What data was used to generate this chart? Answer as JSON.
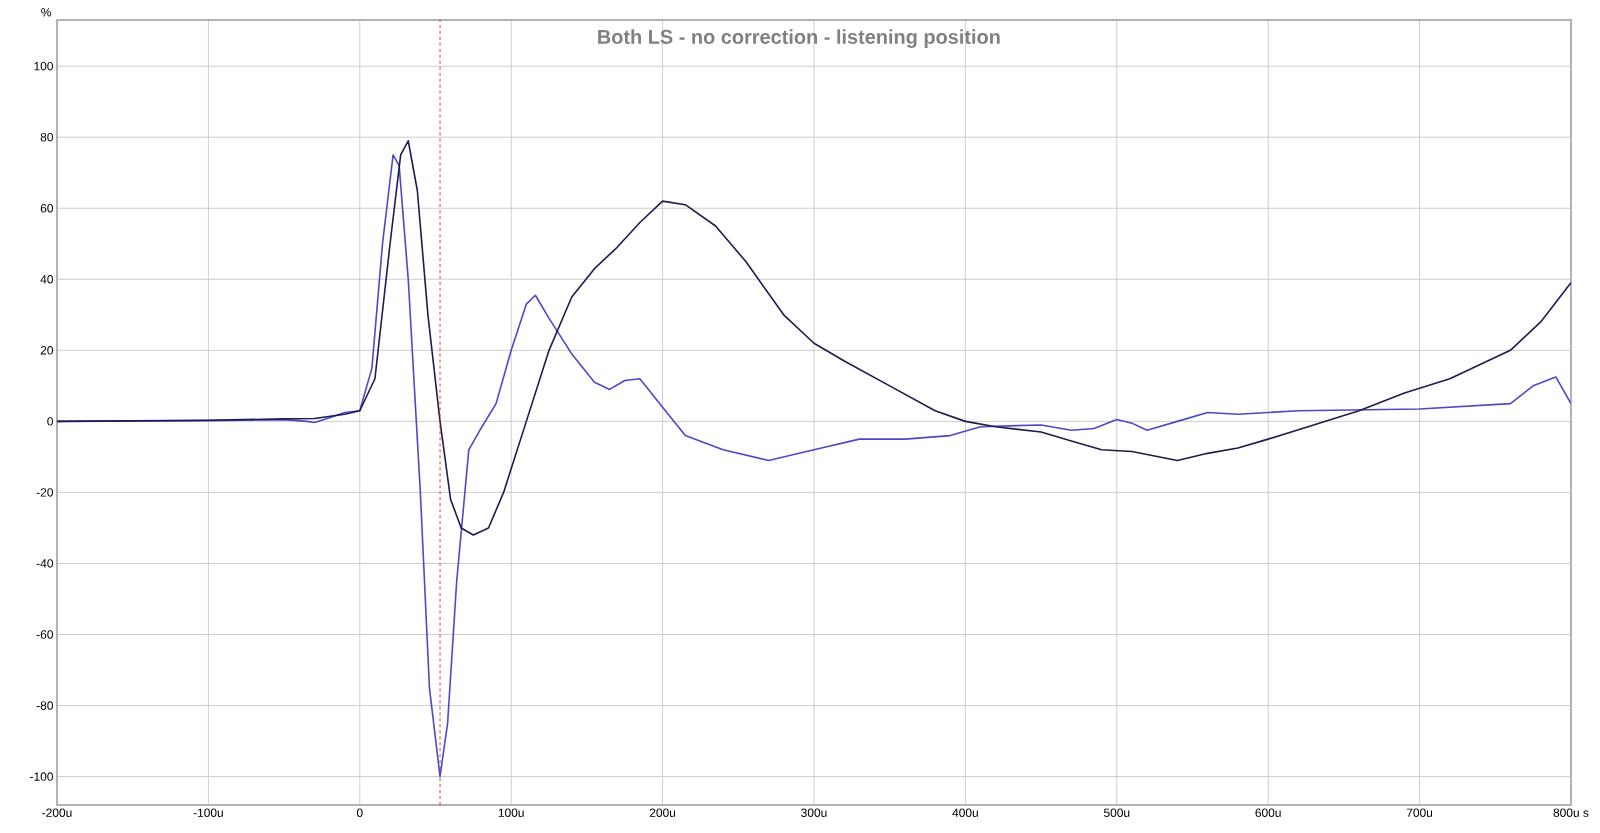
{
  "chart_data": {
    "type": "line",
    "title": "Both LS - no correction - listening position",
    "ylabel": "%",
    "xlim": [
      -200,
      800
    ],
    "ylim": [
      -108,
      113
    ],
    "xticks": [
      {
        "value": -200,
        "label": "-200u"
      },
      {
        "value": -100,
        "label": "-100u"
      },
      0,
      {
        "value": 100,
        "label": "100u"
      },
      {
        "value": 200,
        "label": "200u"
      },
      {
        "value": 300,
        "label": "300u"
      },
      {
        "value": 400,
        "label": "400u"
      },
      {
        "value": 500,
        "label": "500u"
      },
      {
        "value": 600,
        "label": "600u"
      },
      {
        "value": 700,
        "label": "700u"
      },
      {
        "value": 800,
        "label": "800u s"
      }
    ],
    "yticks": [
      -100,
      -80,
      -60,
      -40,
      -20,
      0,
      20,
      40,
      60,
      80,
      100
    ],
    "grid": true,
    "line_style": "solid",
    "ref_lines": [
      {
        "axis": "x",
        "value": 53,
        "color": "#dd2222",
        "line_style": "dashed"
      }
    ],
    "series": [
      {
        "color": "#4a4ac8",
        "x": [
          -200,
          -100,
          -50,
          -35,
          -30,
          -20,
          -10,
          0,
          8,
          15,
          22,
          26,
          32,
          40,
          46,
          53,
          58,
          64,
          72,
          80,
          90,
          100,
          110,
          116,
          125,
          140,
          155,
          165,
          175,
          185,
          200,
          215,
          240,
          270,
          300,
          330,
          360,
          390,
          410,
          450,
          470,
          485,
          500,
          510,
          520,
          540,
          560,
          580,
          600,
          620,
          700,
          760,
          775,
          790,
          800
        ],
        "values": [
          0,
          0.2,
          0.5,
          0,
          -0.3,
          1,
          2.5,
          3,
          15,
          50,
          75,
          72,
          40,
          -20,
          -75,
          -100,
          -85,
          -45,
          -8,
          -2,
          5,
          20,
          33,
          35.5,
          29,
          19,
          11,
          9,
          11.5,
          12,
          4,
          -4,
          -8,
          -11,
          -8,
          -5,
          -5,
          -4,
          -1.5,
          -1,
          -2.5,
          -2,
          0.5,
          -0.5,
          -2.5,
          0,
          2.5,
          2,
          2.5,
          3,
          3.5,
          5,
          10,
          12.5,
          5
        ]
      },
      {
        "color": "#1c1c50",
        "x": [
          -200,
          -100,
          -50,
          -30,
          -10,
          0,
          10,
          20,
          27,
          32,
          38,
          45,
          53,
          60,
          67,
          75,
          85,
          95,
          110,
          125,
          140,
          155,
          170,
          185,
          200,
          215,
          235,
          255,
          280,
          300,
          320,
          350,
          380,
          400,
          420,
          450,
          470,
          490,
          510,
          540,
          560,
          580,
          600,
          630,
          660,
          690,
          720,
          760,
          780,
          800
        ],
        "values": [
          0,
          0.3,
          0.7,
          0.8,
          2,
          3,
          12,
          50,
          75,
          79,
          65,
          30,
          0,
          -22,
          -30,
          -32,
          -30,
          -20,
          0,
          20,
          35,
          43,
          49,
          56,
          62,
          61,
          55,
          45,
          30,
          22,
          17,
          10,
          3,
          0,
          -1.5,
          -3,
          -5.5,
          -8,
          -8.5,
          -11,
          -9,
          -7.5,
          -5,
          -1,
          3,
          8,
          12,
          20,
          28,
          39
        ]
      }
    ]
  }
}
